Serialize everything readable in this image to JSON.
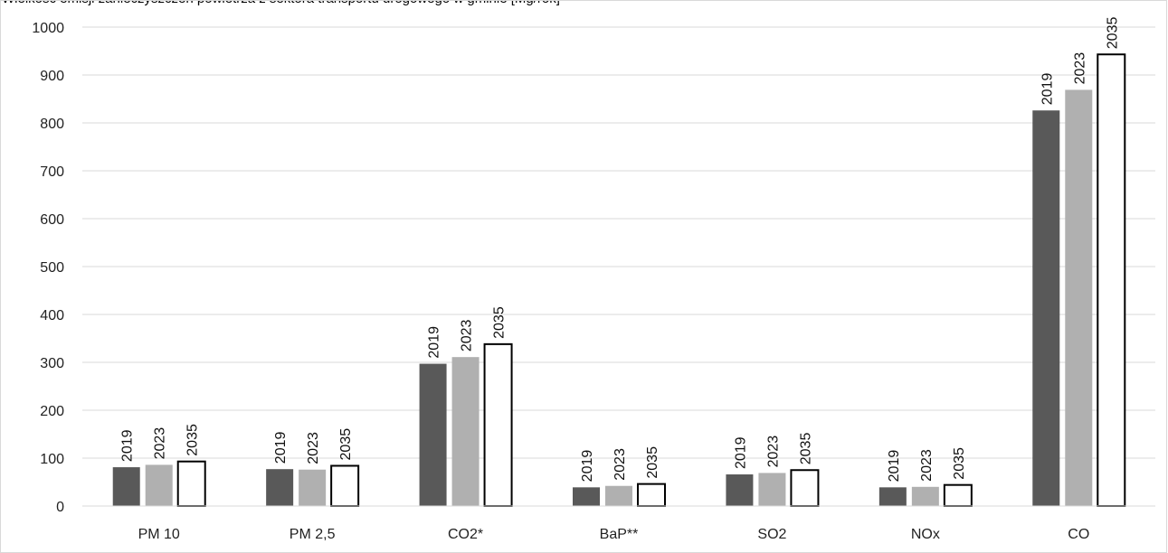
{
  "chart_data": {
    "type": "bar",
    "title": "Wielkość emisji zanieczyszczeń powietrza z sektora transportu drogowego w gminie [Mg/rok]",
    "categories": [
      "PM 10",
      "PM 2,5",
      "CO2*",
      "BaP**",
      "SO2",
      "NOx",
      "CO"
    ],
    "series": [
      {
        "name": "2019",
        "values": [
          81,
          77,
          297,
          39,
          66,
          39,
          826
        ]
      },
      {
        "name": "2023",
        "values": [
          86,
          76,
          311,
          42,
          69,
          40,
          869
        ]
      },
      {
        "name": "2035",
        "values": [
          93,
          84,
          338,
          46,
          75,
          44,
          943
        ]
      }
    ],
    "series_labels": [
      "2019",
      "2023",
      "2035"
    ],
    "colors": [
      "#595959",
      "#b0b0b0",
      "#ffffff"
    ],
    "ylim": [
      0,
      1000
    ],
    "yticks": [
      0,
      100,
      200,
      300,
      400,
      500,
      600,
      700,
      800,
      900,
      1000
    ],
    "grid": true,
    "xlabel": "",
    "ylabel": ""
  }
}
